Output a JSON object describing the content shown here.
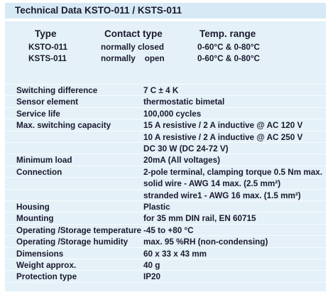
{
  "header": {
    "title": "Technical Data KSTO-011 / KSTS-011"
  },
  "types_table": {
    "headers": [
      "Type",
      "Contact type",
      "Temp. range"
    ],
    "rows": [
      [
        "KSTO-011",
        "normally closed",
        "0-60°C & 0-80°C"
      ],
      [
        "KSTS-011",
        "normally    open",
        "0-60°C & 0-80°C"
      ]
    ]
  },
  "specs": [
    {
      "label": "Switching difference",
      "values": [
        "7 C ± 4 K"
      ]
    },
    {
      "label": "Sensor element",
      "values": [
        "thermostatic bimetal"
      ]
    },
    {
      "label": "Service life",
      "values": [
        "100,000 cycles"
      ]
    },
    {
      "label": "Max. switching capacity",
      "values": [
        "15 A resistive / 2 A inductive @ AC 120 V",
        "10 A resistive / 2 A inductive @ AC 250 V",
        "DC 30 W (DC 24-72 V)"
      ]
    },
    {
      "label": "Minimum load",
      "values": [
        "20mA (All voltages)"
      ]
    },
    {
      "label": "Connection",
      "values": [
        "2-pole terminal, clamping torque 0.5 Nm max.",
        "solid wire - AWG 14 max. (2.5 mm²)",
        "stranded wire1 - AWG 16 max. (1.5 mm²)"
      ]
    },
    {
      "label": "Housing",
      "values": [
        "Plastic"
      ]
    },
    {
      "label": "Mounting",
      "values": [
        "for 35 mm DIN rail, EN 60715"
      ]
    },
    {
      "label": "Operating /Storage temperature",
      "values": [
        "-45 to +80 °C"
      ]
    },
    {
      "label": "Operating /Storage humidity",
      "values": [
        "max. 95 %RH (non-condensing)"
      ]
    },
    {
      "label": "Dimensions",
      "values": [
        "60 x 33 x 43 mm"
      ]
    },
    {
      "label": "Weight approx.",
      "values": [
        "40 g"
      ]
    },
    {
      "label": "Protection type",
      "values": [
        "IP20"
      ]
    }
  ]
}
